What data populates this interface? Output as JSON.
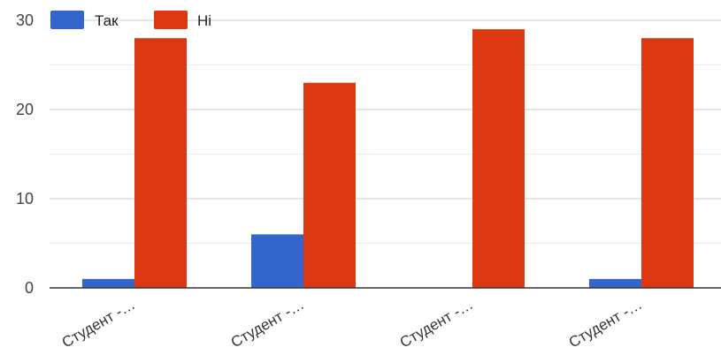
{
  "chart_data": {
    "type": "bar",
    "categories": [
      "Студент -…",
      "Студент -…",
      "Студент -…",
      "Студент -…"
    ],
    "series": [
      {
        "name": "Так",
        "values": [
          1,
          6,
          0,
          1
        ],
        "color": "#3366cc"
      },
      {
        "name": "Ні",
        "values": [
          28,
          23,
          29,
          28
        ],
        "color": "#dc3912"
      }
    ],
    "yticks": [
      "0",
      "10",
      "20",
      "30"
    ],
    "ylim": [
      0,
      30
    ],
    "grid": true,
    "legend": "top-left",
    "title": "",
    "xlabel": "",
    "ylabel": ""
  }
}
